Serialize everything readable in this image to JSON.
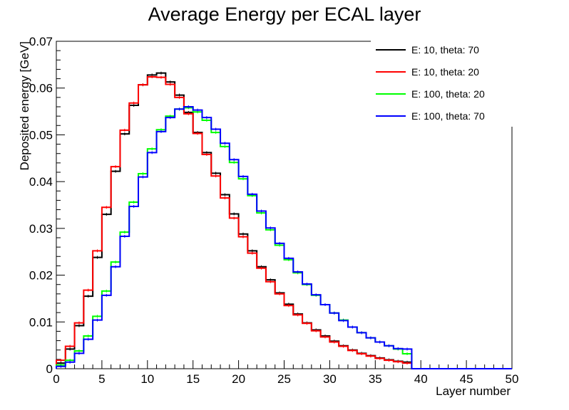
{
  "chart_data": {
    "type": "line",
    "title": "Average Energy per ECAL layer",
    "xlabel": "Layer number",
    "ylabel": "Deposited energy [GeV]",
    "xlim": [
      0,
      50
    ],
    "ylim": [
      0,
      0.07
    ],
    "grid": false,
    "legend_position": "top-right",
    "x_ticks": [
      0,
      5,
      10,
      15,
      20,
      25,
      30,
      35,
      40,
      45,
      50
    ],
    "y_ticks": [
      0,
      0.01,
      0.02,
      0.03,
      0.04,
      0.05,
      0.06,
      0.07
    ],
    "x_tick_labels": [
      "0",
      "5",
      "10",
      "15",
      "20",
      "25",
      "30",
      "35",
      "40",
      "45",
      "50"
    ],
    "y_tick_labels": [
      "0",
      "0.01",
      "0.02",
      "0.03",
      "0.04",
      "0.05",
      "0.06",
      "0.07"
    ],
    "bin_edges": [
      0,
      1,
      2,
      3,
      4,
      5,
      6,
      7,
      8,
      9,
      10,
      11,
      12,
      13,
      14,
      15,
      16,
      17,
      18,
      19,
      20,
      21,
      22,
      23,
      24,
      25,
      26,
      27,
      28,
      29,
      30,
      31,
      32,
      33,
      34,
      35,
      36,
      37,
      38,
      39,
      40,
      41,
      42,
      43,
      44,
      45,
      46,
      47,
      48,
      49,
      50
    ],
    "series": [
      {
        "name": "E: 10, theta: 70",
        "color": "#000000",
        "values": [
          0.0012,
          0.0042,
          0.0092,
          0.0155,
          0.0238,
          0.033,
          0.0422,
          0.0502,
          0.0563,
          0.0607,
          0.0628,
          0.0632,
          0.0613,
          0.0585,
          0.0548,
          0.0505,
          0.0462,
          0.0418,
          0.0372,
          0.0331,
          0.0288,
          0.0252,
          0.0218,
          0.019,
          0.0162,
          0.0138,
          0.0117,
          0.0098,
          0.0083,
          0.007,
          0.0059,
          0.0049,
          0.004,
          0.0033,
          0.0028,
          0.0023,
          0.0019,
          0.0016,
          0.0014,
          0.0,
          0.0,
          0.0,
          0.0,
          0.0,
          0.0,
          0.0,
          0.0,
          0.0,
          0.0,
          0.0
        ]
      },
      {
        "name": "E: 10, theta: 20",
        "color": "#ff0000",
        "values": [
          0.0018,
          0.0048,
          0.0098,
          0.0168,
          0.0252,
          0.0345,
          0.0432,
          0.051,
          0.0568,
          0.0607,
          0.0624,
          0.0623,
          0.0608,
          0.058,
          0.0545,
          0.0503,
          0.0458,
          0.0412,
          0.0365,
          0.0322,
          0.0282,
          0.0247,
          0.0215,
          0.0186,
          0.016,
          0.0135,
          0.0115,
          0.0097,
          0.0081,
          0.0068,
          0.0057,
          0.0048,
          0.0039,
          0.0032,
          0.0027,
          0.0022,
          0.0018,
          0.0015,
          0.0012,
          0.0,
          0.0,
          0.0,
          0.0,
          0.0,
          0.0,
          0.0,
          0.0,
          0.0,
          0.0,
          0.0
        ]
      },
      {
        "name": "E: 100, theta: 20",
        "color": "#00ff00",
        "values": [
          0.0008,
          0.0018,
          0.0038,
          0.007,
          0.0112,
          0.0166,
          0.0228,
          0.0292,
          0.0356,
          0.0417,
          0.047,
          0.0511,
          0.054,
          0.0555,
          0.0558,
          0.0549,
          0.0531,
          0.0505,
          0.0475,
          0.0441,
          0.0406,
          0.037,
          0.0333,
          0.0297,
          0.0264,
          0.0233,
          0.0205,
          0.018,
          0.0157,
          0.0137,
          0.0119,
          0.0104,
          0.0089,
          0.0077,
          0.0066,
          0.0057,
          0.0049,
          0.0042,
          0.0032,
          0.0,
          0.0,
          0.0,
          0.0,
          0.0,
          0.0,
          0.0,
          0.0,
          0.0,
          0.0,
          0.0
        ]
      },
      {
        "name": "E: 100, theta: 70",
        "color": "#0000ff",
        "values": [
          0.0005,
          0.0014,
          0.0033,
          0.0063,
          0.0104,
          0.0157,
          0.0218,
          0.0283,
          0.0347,
          0.041,
          0.0462,
          0.0507,
          0.0537,
          0.0555,
          0.056,
          0.0553,
          0.0537,
          0.0512,
          0.0482,
          0.0447,
          0.0411,
          0.0373,
          0.0337,
          0.0301,
          0.0268,
          0.0236,
          0.0207,
          0.0181,
          0.0158,
          0.0137,
          0.0119,
          0.0103,
          0.0089,
          0.0077,
          0.0066,
          0.0057,
          0.0049,
          0.0043,
          0.0042,
          0.0,
          0.0,
          0.0,
          0.0,
          0.0,
          0.0,
          0.0,
          0.0,
          0.0,
          0.0,
          0.0
        ]
      }
    ]
  }
}
